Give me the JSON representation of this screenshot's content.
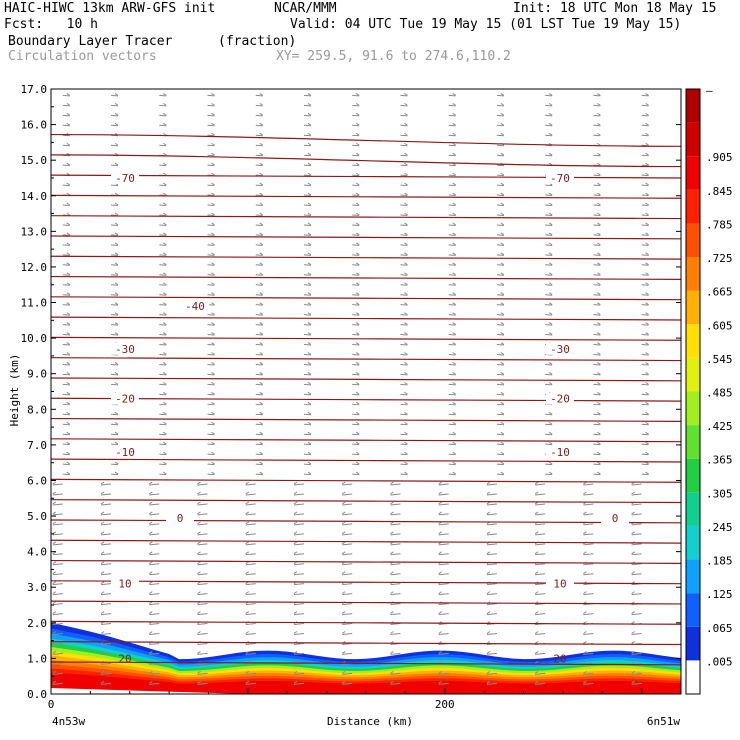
{
  "header": {
    "model": "HAIC-HIWC 13km ARW-GFS init",
    "org": "NCAR/MMM",
    "init": "Init: 18 UTC Mon 18 May 15",
    "fcst": "Fcst:   10 h",
    "valid": "Valid: 04 UTC Tue 19 May 15 (01 LST Tue 19 May 15)",
    "field1_name": "Boundary Layer Tracer",
    "field1_units": "(fraction)",
    "field2_name": "Circulation vectors",
    "xy": "XY= 259.5, 91.6 to 274.6,110.2"
  },
  "chart_data": {
    "type": "heatmap",
    "xlabel": "Distance (km)",
    "ylabel": "Height (km)",
    "xlim": [
      0,
      320
    ],
    "ylim": [
      0,
      17
    ],
    "y_ticks": [
      "0.0",
      "1.0",
      "2.0",
      "3.0",
      "4.0",
      "5.0",
      "6.0",
      "7.0",
      "8.0",
      "9.0",
      "10.0",
      "11.0",
      "12.0",
      "13.0",
      "14.0",
      "15.0",
      "16.0",
      "17.0"
    ],
    "x_ticks": [
      {
        "value": 0,
        "label": "0"
      },
      {
        "value": 200,
        "label": "200"
      }
    ],
    "x_endpoints": {
      "left": "4n53w",
      "right": "6n51w"
    },
    "colorbar": {
      "labels": [
        ".005",
        ".065",
        ".125",
        ".185",
        ".245",
        ".305",
        ".365",
        ".425",
        ".485",
        ".545",
        ".605",
        ".665",
        ".725",
        ".785",
        ".845",
        ".905"
      ],
      "colors": [
        "#ffffff",
        "#1030e0",
        "#1060ff",
        "#10a0ff",
        "#10d0d0",
        "#10d090",
        "#20d040",
        "#60e030",
        "#a0f020",
        "#e0f010",
        "#ffe000",
        "#ffb000",
        "#ff8000",
        "#ff5000",
        "#ff2000",
        "#f00000",
        "#d00000",
        "#b00000"
      ]
    },
    "isotherms": [
      {
        "label": "-70",
        "height": 14.5
      },
      {
        "label": "-40",
        "height": 10.9
      },
      {
        "label": "-30",
        "height": 9.7
      },
      {
        "label": "-20",
        "height": 8.3
      },
      {
        "label": "-10",
        "height": 6.8
      },
      {
        "label": "0",
        "height": 4.95
      },
      {
        "label": "10",
        "height": 3.1
      },
      {
        "label": "20",
        "height": 1.0
      }
    ],
    "tracer_layer": {
      "top_height_left": 2.0,
      "top_height_right": 1.1,
      "core_top_height": 0.9
    }
  }
}
